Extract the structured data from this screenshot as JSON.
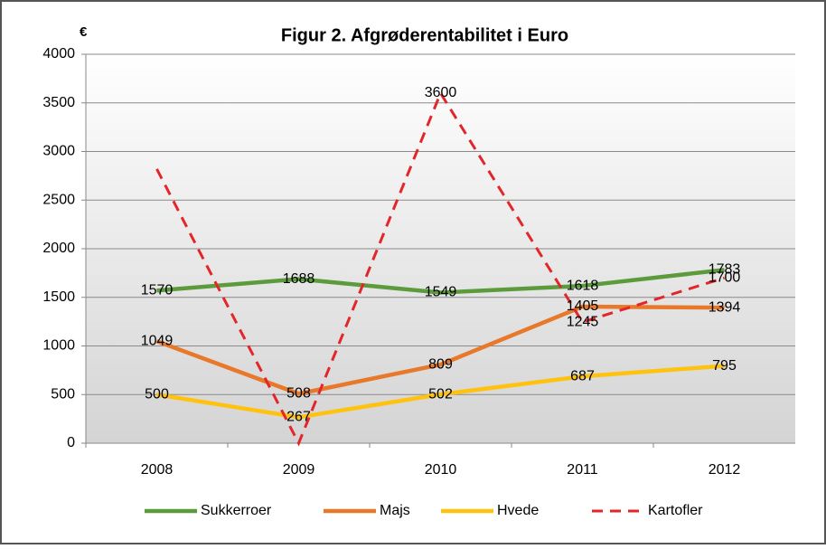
{
  "chart_data": {
    "type": "line",
    "title": "Figur 2. Afgrøderentabilitet i Euro",
    "y_label": "€",
    "categories": [
      "2008",
      "2009",
      "2010",
      "2011",
      "2012"
    ],
    "series": [
      {
        "name": "Sukkerroer",
        "color": "#5b9b3b",
        "values": [
          1570,
          1688,
          1549,
          1618,
          1783
        ]
      },
      {
        "name": "Majs",
        "color": "#e8782a",
        "values": [
          1049,
          508,
          809,
          1405,
          1394
        ]
      },
      {
        "name": "Hvede",
        "color": "#ffc20e",
        "values": [
          500,
          267,
          502,
          687,
          795
        ]
      },
      {
        "name": "Kartofler",
        "color": "#e3262a",
        "dashed": true,
        "values": [
          2820,
          0,
          3600,
          1245,
          1700
        ],
        "value_labels": [
          null,
          null,
          "3600",
          "1245",
          "1700"
        ]
      }
    ],
    "ylim": [
      0,
      4000
    ],
    "yticks": [
      0,
      500,
      1000,
      1500,
      2000,
      2500,
      3000,
      3500,
      4000
    ],
    "grid": true,
    "legend": "bottom"
  }
}
